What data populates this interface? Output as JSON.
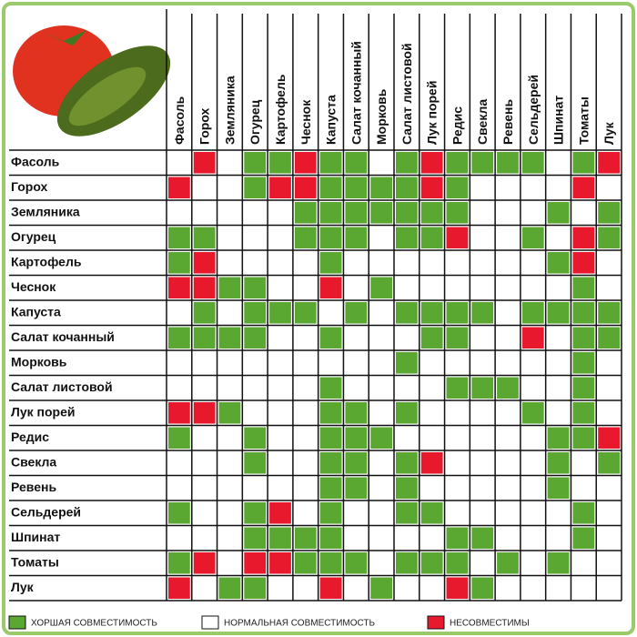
{
  "columns": [
    "Фасоль",
    "Горох",
    "Земляника",
    "Огурец",
    "Картофель",
    "Чеснок",
    "Капуста",
    "Салат кочанный",
    "Морковь",
    "Салат листовой",
    "Лук порей",
    "Редис",
    "Свекла",
    "Ревень",
    "Сельдерей",
    "Шпинат",
    "Томаты",
    "Лук"
  ],
  "rows": [
    {
      "label": "Фасоль",
      "cells": [
        1,
        2,
        1,
        0,
        0,
        2,
        0,
        0,
        1,
        0,
        2,
        0,
        0,
        0,
        0,
        1,
        0,
        2
      ]
    },
    {
      "label": "Горох",
      "cells": [
        2,
        1,
        1,
        0,
        2,
        2,
        0,
        0,
        0,
        0,
        2,
        0,
        1,
        1,
        1,
        1,
        2,
        1
      ]
    },
    {
      "label": "Земляника",
      "cells": [
        1,
        1,
        1,
        1,
        1,
        0,
        0,
        0,
        0,
        0,
        0,
        0,
        1,
        1,
        1,
        0,
        1,
        0
      ]
    },
    {
      "label": "Огурец",
      "cells": [
        0,
        0,
        1,
        1,
        1,
        0,
        0,
        0,
        1,
        0,
        0,
        2,
        1,
        1,
        0,
        1,
        2,
        0
      ]
    },
    {
      "label": "Картофель",
      "cells": [
        0,
        2,
        1,
        1,
        1,
        1,
        0,
        1,
        1,
        1,
        1,
        1,
        1,
        1,
        1,
        0,
        2,
        1
      ]
    },
    {
      "label": "Чеснок",
      "cells": [
        2,
        2,
        0,
        0,
        1,
        1,
        2,
        1,
        0,
        1,
        1,
        1,
        1,
        1,
        1,
        1,
        0,
        1
      ]
    },
    {
      "label": "Капуста",
      "cells": [
        1,
        0,
        1,
        0,
        0,
        0,
        1,
        0,
        1,
        0,
        0,
        0,
        0,
        1,
        0,
        0,
        0,
        0
      ]
    },
    {
      "label": "Салат кочанный",
      "cells": [
        0,
        0,
        0,
        0,
        1,
        1,
        0,
        1,
        1,
        1,
        0,
        0,
        1,
        1,
        2,
        1,
        0,
        0
      ]
    },
    {
      "label": "Морковь",
      "cells": [
        1,
        1,
        1,
        1,
        1,
        1,
        1,
        1,
        1,
        0,
        1,
        1,
        1,
        1,
        1,
        1,
        0,
        1
      ]
    },
    {
      "label": "Салат листовой",
      "cells": [
        1,
        1,
        1,
        1,
        1,
        1,
        0,
        1,
        1,
        1,
        1,
        0,
        0,
        0,
        1,
        1,
        0,
        1
      ]
    },
    {
      "label": "Лук порей",
      "cells": [
        2,
        2,
        0,
        1,
        1,
        1,
        0,
        0,
        1,
        0,
        1,
        1,
        1,
        1,
        0,
        1,
        0,
        1
      ]
    },
    {
      "label": "Редис",
      "cells": [
        0,
        1,
        1,
        0,
        1,
        1,
        0,
        0,
        0,
        1,
        1,
        1,
        1,
        1,
        1,
        0,
        0,
        2
      ]
    },
    {
      "label": "Свекла",
      "cells": [
        1,
        1,
        1,
        0,
        1,
        1,
        0,
        0,
        1,
        0,
        2,
        1,
        1,
        1,
        1,
        0,
        1,
        0
      ]
    },
    {
      "label": "Ревень",
      "cells": [
        1,
        1,
        1,
        1,
        1,
        1,
        0,
        0,
        1,
        0,
        1,
        1,
        1,
        1,
        1,
        0,
        1,
        1
      ]
    },
    {
      "label": "Сельдерей",
      "cells": [
        0,
        1,
        1,
        0,
        2,
        1,
        0,
        1,
        1,
        0,
        0,
        1,
        1,
        1,
        1,
        1,
        0,
        1
      ]
    },
    {
      "label": "Шпинат",
      "cells": [
        1,
        1,
        1,
        0,
        0,
        0,
        0,
        1,
        1,
        1,
        1,
        0,
        0,
        1,
        1,
        1,
        0,
        1
      ]
    },
    {
      "label": "Томаты",
      "cells": [
        0,
        2,
        1,
        2,
        2,
        0,
        0,
        0,
        1,
        0,
        0,
        0,
        1,
        0,
        1,
        0,
        1,
        1
      ]
    },
    {
      "label": "Лук",
      "cells": [
        2,
        1,
        0,
        0,
        1,
        1,
        2,
        1,
        0,
        1,
        1,
        2,
        0,
        1,
        1,
        1,
        1,
        1
      ]
    }
  ],
  "legend": [
    {
      "label": "ХОРШАЯ СОВМЕСТИМОСТЬ",
      "color": "#5aa832"
    },
    {
      "label": "НОРМАЛЬНАЯ СОВМЕСТИМОСТЬ",
      "color": "#ffffff"
    },
    {
      "label": "НЕСОВМЕСТИМЫ",
      "color": "#e8192c"
    }
  ]
}
